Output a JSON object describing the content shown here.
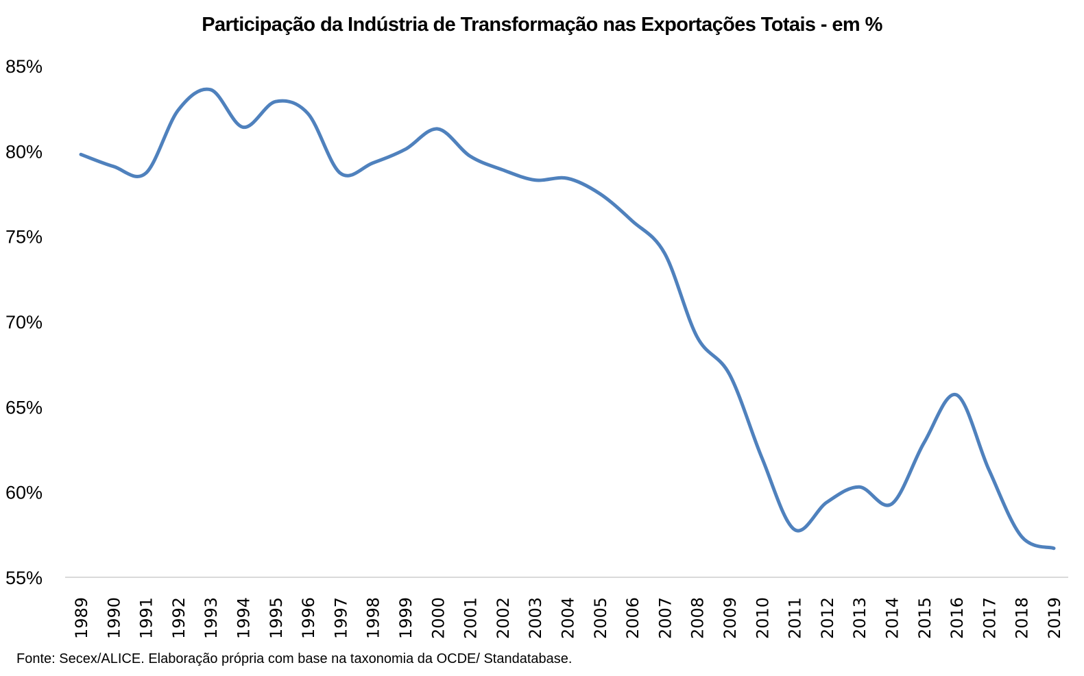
{
  "chart_data": {
    "type": "line",
    "title": "Participação da Indústria de Transformação nas Exportações Totais - em %",
    "xlabel": "",
    "ylabel": "",
    "source": "Fonte: Secex/ALICE. Elaboração própria com base na taxonomia da OCDE/ Standatabase.",
    "x": [
      "1989",
      "1990",
      "1991",
      "1992",
      "1993",
      "1994",
      "1995",
      "1996",
      "1997",
      "1998",
      "1999",
      "2000",
      "2001",
      "2002",
      "2003",
      "2004",
      "2005",
      "2006",
      "2007",
      "2008",
      "2009",
      "2010",
      "2011",
      "2012",
      "2013",
      "2014",
      "2015",
      "2016",
      "2017",
      "2018",
      "2019"
    ],
    "series": [
      {
        "name": "Participação da Indústria de Transformação",
        "color": "#4F81BD",
        "smooth": true,
        "values": [
          79.8,
          79.1,
          78.7,
          82.4,
          83.6,
          81.4,
          82.9,
          82.2,
          78.7,
          79.3,
          80.1,
          81.3,
          79.7,
          78.9,
          78.3,
          78.4,
          77.5,
          75.9,
          74.0,
          69.1,
          66.9,
          62.0,
          57.8,
          59.4,
          60.3,
          59.3,
          62.9,
          65.7,
          61.3,
          57.4,
          56.7
        ]
      }
    ],
    "ylim": [
      55,
      85
    ],
    "yticks": [
      55,
      60,
      65,
      70,
      75,
      80,
      85
    ],
    "ytick_labels": [
      "55%",
      "60%",
      "65%",
      "70%",
      "75%",
      "80%",
      "85%"
    ],
    "grid": false,
    "legend": "none",
    "axis_color": "#D9D9D9"
  }
}
